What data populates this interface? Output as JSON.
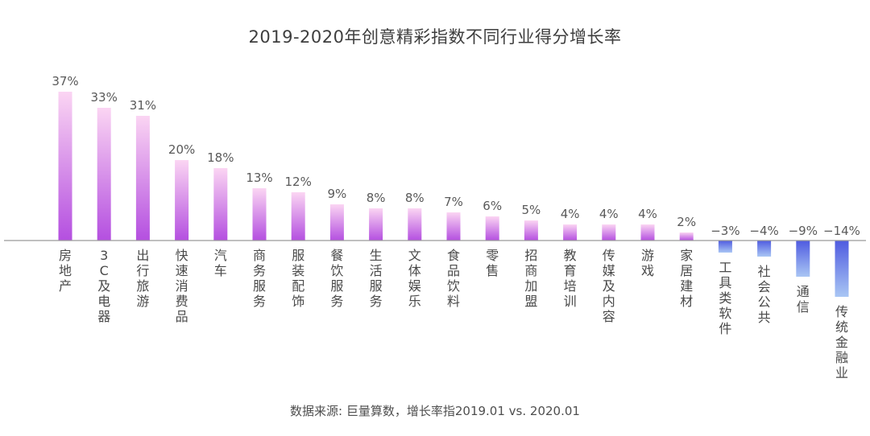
{
  "chart_data": {
    "type": "bar",
    "title": "2019-2020年创意精彩指数不同行业得分增长率",
    "note": "数据来源: 巨量算数，增长率指2019.01 vs. 2020.01",
    "categories": [
      "房地产",
      "3C及电器",
      "出行旅游",
      "快速消费品",
      "汽车",
      "商务服务",
      "服装配饰",
      "餐饮服务",
      "生活服务",
      "文体娱乐",
      "食品饮料",
      "零售",
      "招商加盟",
      "教育培训",
      "传媒及内容",
      "游戏",
      "家居建材",
      "工具类软件",
      "社会公共",
      "通信",
      "传统金融业"
    ],
    "values": [
      37,
      33,
      31,
      20,
      18,
      13,
      12,
      9,
      8,
      8,
      7,
      6,
      5,
      4,
      4,
      4,
      2,
      -3,
      -4,
      -9,
      -14
    ],
    "value_labels": [
      "37%",
      "33%",
      "31%",
      "20%",
      "18%",
      "13%",
      "12%",
      "9%",
      "8%",
      "8%",
      "7%",
      "6%",
      "5%",
      "4%",
      "4%",
      "4%",
      "2%",
      "−3%",
      "−4%",
      "−9%",
      "−14%"
    ],
    "ylim": [
      -14,
      37
    ],
    "grid": false,
    "colors": {
      "positive_top": "#fbd5f3",
      "positive_bottom": "#b44fe0",
      "negative_top": "#4f5be0",
      "negative_bottom": "#a9c6f4",
      "axis": "#9a9a9a"
    }
  }
}
